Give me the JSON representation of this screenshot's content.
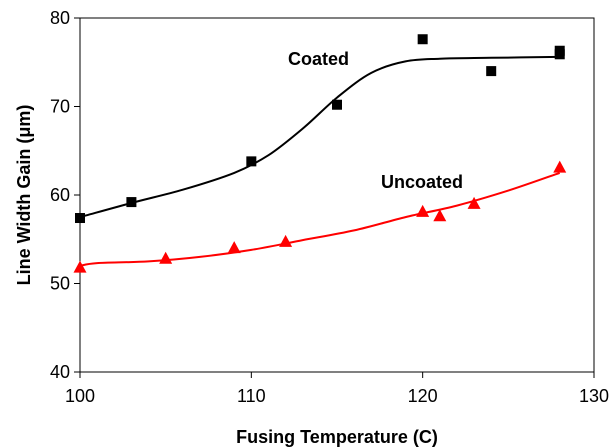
{
  "chart_data": {
    "type": "scatter",
    "xlabel": "Fusing Temperature (C)",
    "ylabel": "Line Width Gain (μm)",
    "xlim": [
      100,
      130
    ],
    "ylim": [
      40,
      80
    ],
    "x_ticks": [
      "100",
      "110",
      "120",
      "130"
    ],
    "y_ticks": [
      "40",
      "50",
      "60",
      "70",
      "80"
    ],
    "grid": false,
    "series": [
      {
        "name": "Coated",
        "marker": "square",
        "color": "#000000",
        "points": [
          {
            "x": 100,
            "y": 57.4
          },
          {
            "x": 103,
            "y": 59.2
          },
          {
            "x": 110,
            "y": 63.8
          },
          {
            "x": 115,
            "y": 70.2
          },
          {
            "x": 120,
            "y": 77.6
          },
          {
            "x": 124,
            "y": 74.0
          },
          {
            "x": 128,
            "y": 76.3
          },
          {
            "x": 128,
            "y": 75.9
          }
        ],
        "fit": [
          {
            "x": 100,
            "y": 57.5
          },
          {
            "x": 103,
            "y": 59.1
          },
          {
            "x": 106,
            "y": 60.6
          },
          {
            "x": 109,
            "y": 62.5
          },
          {
            "x": 111,
            "y": 64.5
          },
          {
            "x": 113,
            "y": 67.5
          },
          {
            "x": 115,
            "y": 71.0
          },
          {
            "x": 117,
            "y": 73.8
          },
          {
            "x": 119,
            "y": 75.1
          },
          {
            "x": 121,
            "y": 75.4
          },
          {
            "x": 124,
            "y": 75.5
          },
          {
            "x": 128,
            "y": 75.6
          }
        ]
      },
      {
        "name": "Uncoated",
        "marker": "triangle",
        "color": "#ff0000",
        "points": [
          {
            "x": 100,
            "y": 51.8
          },
          {
            "x": 105,
            "y": 52.8
          },
          {
            "x": 109,
            "y": 54.0
          },
          {
            "x": 112,
            "y": 54.7
          },
          {
            "x": 120,
            "y": 58.1
          },
          {
            "x": 121,
            "y": 57.6
          },
          {
            "x": 123,
            "y": 59.0
          },
          {
            "x": 128,
            "y": 63.1
          }
        ],
        "fit": [
          {
            "x": 100,
            "y": 52.0
          },
          {
            "x": 101,
            "y": 52.3
          },
          {
            "x": 104,
            "y": 52.5
          },
          {
            "x": 107,
            "y": 53.0
          },
          {
            "x": 110,
            "y": 53.8
          },
          {
            "x": 113,
            "y": 54.9
          },
          {
            "x": 116,
            "y": 56.0
          },
          {
            "x": 119,
            "y": 57.5
          },
          {
            "x": 122,
            "y": 58.8
          },
          {
            "x": 125,
            "y": 60.5
          },
          {
            "x": 128,
            "y": 62.5
          }
        ]
      }
    ]
  }
}
